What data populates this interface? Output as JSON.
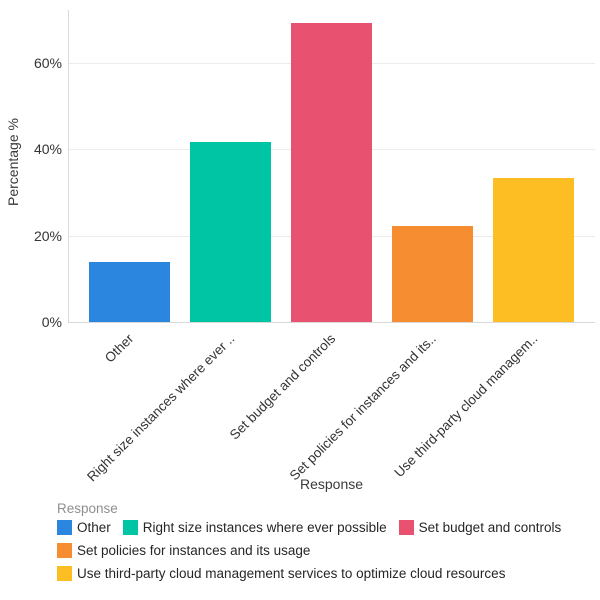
{
  "chart_data": {
    "type": "bar",
    "title": "",
    "xlabel": "Response",
    "ylabel": "Percentage %",
    "ylim": [
      0,
      72.3
    ],
    "grid": true,
    "legend_position": "bottom",
    "legend_title": "Response",
    "categories": [
      "Other",
      "Right size instances where ever possible",
      "Set budget and controls",
      "Set policies for instances and its usage",
      "Use third-party cloud management services to optimize cloud resources"
    ],
    "xtick_labels": [
      "Other",
      "Right size instances where ever ..",
      "Set budget and controls",
      "Set policies for instances and its..",
      "Use third-party cloud managem.."
    ],
    "values": [
      13.9,
      41.7,
      69.4,
      22.2,
      33.3
    ],
    "colors": [
      "#2B86E0",
      "#00C5A4",
      "#E85170",
      "#F68D30",
      "#FCBE22"
    ],
    "yticks": [
      {
        "value": 0,
        "label": "0%"
      },
      {
        "value": 20,
        "label": "20%"
      },
      {
        "value": 40,
        "label": "40%"
      },
      {
        "value": 60,
        "label": "60%"
      }
    ]
  }
}
